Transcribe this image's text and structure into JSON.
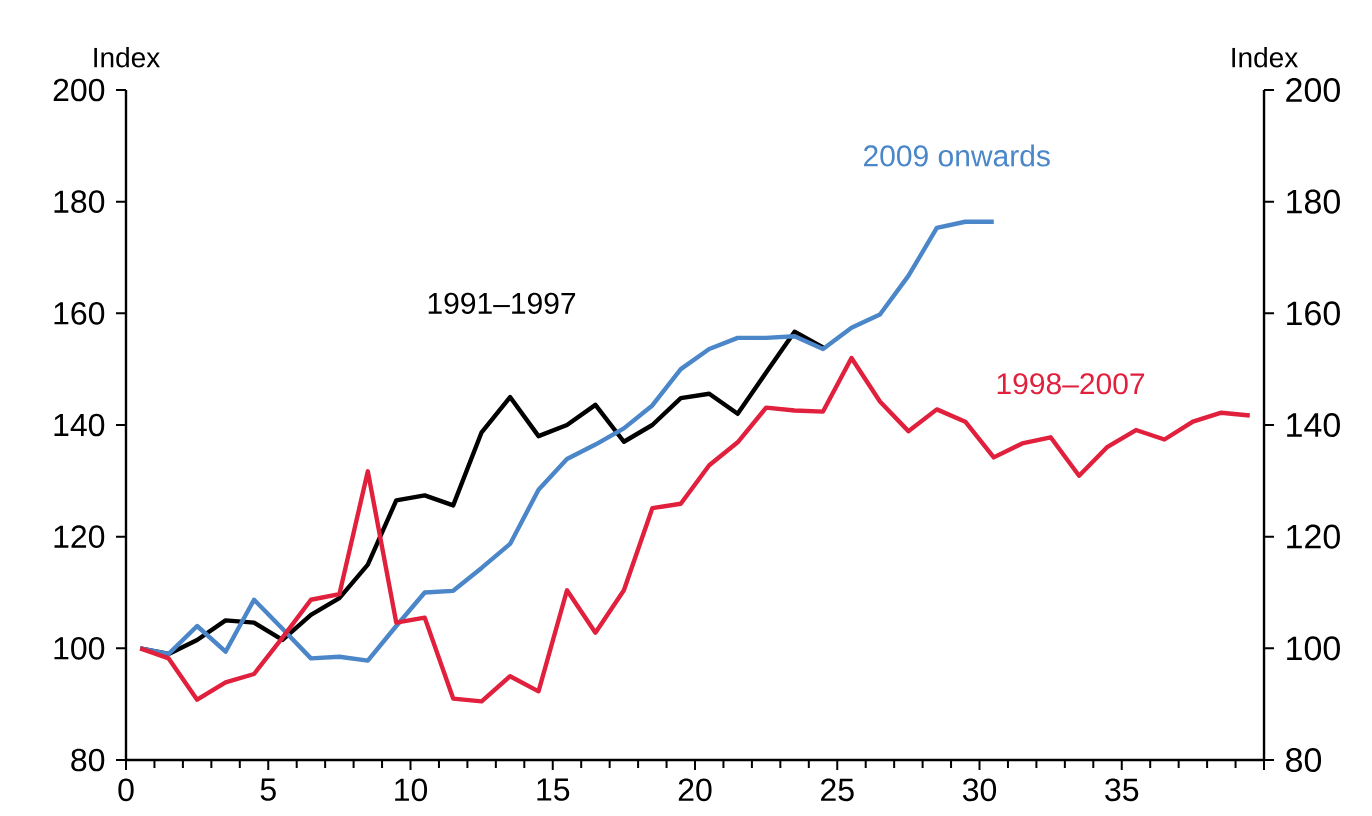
{
  "chart_data": {
    "type": "line",
    "ylabel": "Index",
    "y2label": "Index",
    "x": [
      0.5,
      1.5,
      2.5,
      3.5,
      4.5,
      5.5,
      6.5,
      7.5,
      8.5,
      9.5,
      10.5,
      11.5,
      12.5,
      13.5,
      14.5,
      15.5,
      16.5,
      17.5,
      18.5,
      19.5,
      20.5,
      21.5,
      22.5,
      23.5,
      24.5,
      25.5,
      26.5,
      27.5,
      28.5,
      29.5,
      30.5,
      31.5,
      32.5,
      33.5,
      34.5,
      35.5,
      36.5,
      37.5,
      38.5,
      39.5
    ],
    "series": [
      {
        "name": "1991–1997",
        "color": "#000000",
        "x": [
          0.5,
          1.5,
          2.5,
          3.5,
          4.5,
          5.5,
          6.5,
          7.5,
          8.5,
          9.5,
          10.5,
          11.5,
          12.5,
          13.5,
          14.5,
          15.5,
          16.5,
          17.5,
          18.5,
          19.5,
          20.5,
          21.5,
          22.5,
          23.5,
          24.5
        ],
        "values": [
          100,
          99,
          101.5,
          105,
          104.6,
          101.5,
          106,
          109,
          115,
          126.5,
          127.4,
          125.6,
          138.7,
          145,
          138,
          140,
          143.6,
          137,
          140,
          144.8,
          145.6,
          142,
          149.4,
          156.7,
          153.9
        ]
      },
      {
        "name": "2009 onwards",
        "color": "#4a86c8",
        "x": [
          0.5,
          1.5,
          2.5,
          3.5,
          4.5,
          5.5,
          6.5,
          7.5,
          8.5,
          9.5,
          10.5,
          11.5,
          12.5,
          13.5,
          14.5,
          15.5,
          16.5,
          17.5,
          18.5,
          19.5,
          20.5,
          21.5,
          22.5,
          23.5,
          24.5,
          25.5,
          26.5,
          27.5,
          28.5,
          29.5,
          30.5
        ],
        "values": [
          100,
          99,
          104,
          99.4,
          108.7,
          103.5,
          98.2,
          98.5,
          97.8,
          104,
          110,
          110.3,
          114.4,
          118.7,
          128.4,
          133.9,
          136.5,
          139.4,
          143.5,
          150,
          153.6,
          155.6,
          155.6,
          155.9,
          153.6,
          157.4,
          159.8,
          166.7,
          175.3,
          176.4,
          176.4
        ]
      },
      {
        "name": "1998–2007",
        "color": "#e0203c",
        "values": [
          100,
          98.2,
          90.8,
          93.9,
          95.4,
          101.9,
          108.7,
          109.7,
          131.7,
          104.6,
          105.5,
          91,
          90.5,
          95,
          92.3,
          110.4,
          102.8,
          110.4,
          125.1,
          125.9,
          132.8,
          136.9,
          143.1,
          142.6,
          142.4,
          152,
          144.2,
          138.9,
          142.8,
          140.6,
          134.2,
          136.7,
          137.8,
          130.9,
          136.1,
          139.1,
          137.4,
          140.6,
          142.2,
          141.7
        ]
      }
    ],
    "xlim": [
      0,
      40
    ],
    "xticks": [
      0,
      5,
      10,
      15,
      20,
      25,
      30,
      35,
      {
        "value": 40,
        "label": null
      }
    ],
    "ylim": [
      80,
      200
    ],
    "yticks": [
      80,
      100,
      120,
      140,
      160,
      180,
      200
    ],
    "y2lim": [
      80,
      200
    ],
    "y2ticks": [
      80,
      100,
      120,
      140,
      160,
      180,
      200
    ],
    "grid": false,
    "legend": false,
    "marker": "none",
    "line_style": "solid"
  }
}
